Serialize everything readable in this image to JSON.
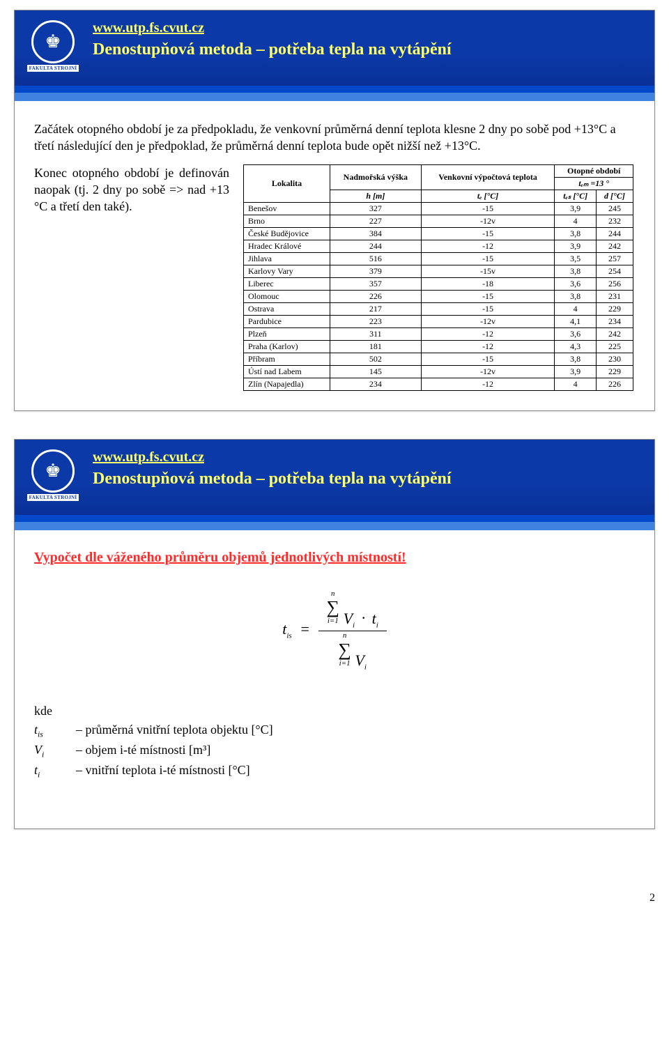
{
  "page_number": "2",
  "header": {
    "url": "www.utp.fs.cvut.cz",
    "title": "Denostupňová metoda – potřeba tepla na vytápění",
    "logo_label": "FAKULTA STROJNÍ",
    "colors": {
      "header_bg": "#0b3aa8",
      "accent_bar": "#3f82e0",
      "link_color": "#ffff66",
      "title_color": "#ffff66"
    }
  },
  "slide1": {
    "para1": "Začátek otopného období je za předpokladu, že venkovní průměrná denní teplota klesne 2 dny po sobě pod +13°C a třetí následující den je předpoklad, že průměrná denní teplota bude opět nižší než  +13°C.",
    "para2": "Konec otopného období je definován naopak (tj. 2 dny po sobě => nad +13 °C a třetí den také).",
    "table": {
      "head_lokalita": "Lokalita",
      "head_nadm": "Nadmořská výška",
      "head_venk": "Venkovní výpočtová teplota",
      "head_otop": "Otopné období",
      "head_tem13": "tₑₘ =13 °",
      "sub_h": "h  [m]",
      "sub_te": "tₑ  [°C]",
      "sub_tes": "tₑₛ  [°C]",
      "sub_d": "d  [°C]",
      "rows": [
        [
          "Benešov",
          "327",
          "-15",
          "3,9",
          "245"
        ],
        [
          "Brno",
          "227",
          "-12v",
          "4",
          "232"
        ],
        [
          "České Budějovice",
          "384",
          "-15",
          "3,8",
          "244"
        ],
        [
          "Hradec Králové",
          "244",
          "-12",
          "3,9",
          "242"
        ],
        [
          "Jihlava",
          "516",
          "-15",
          "3,5",
          "257"
        ],
        [
          "Karlovy Vary",
          "379",
          "-15v",
          "3,8",
          "254"
        ],
        [
          "Liberec",
          "357",
          "-18",
          "3,6",
          "256"
        ],
        [
          "Olomouc",
          "226",
          "-15",
          "3,8",
          "231"
        ],
        [
          "Ostrava",
          "217",
          "-15",
          "4",
          "229"
        ],
        [
          "Pardubice",
          "223",
          "-12v",
          "4,1",
          "234"
        ],
        [
          "Plzeň",
          "311",
          "-12",
          "3,6",
          "242"
        ],
        [
          "Praha (Karlov)",
          "181",
          "-12",
          "4,3",
          "225"
        ],
        [
          "Příbram",
          "502",
          "-15",
          "3,8",
          "230"
        ],
        [
          "Ústí nad Labem",
          "145",
          "-12v",
          "3,9",
          "229"
        ],
        [
          "Zlín (Napajedla)",
          "234",
          "-12",
          "4",
          "226"
        ]
      ]
    }
  },
  "slide2": {
    "red_line": "Vypočet dle váženého průměru objemů jednotlivých místností!",
    "formula": {
      "lhs": "t",
      "lhs_sub": "is",
      "eq": "=",
      "sum_top_limit": "n",
      "sum_bottom_limit": "i=1",
      "num_expr_v": "V",
      "num_expr_vsub": "i",
      "num_expr_dot": "·",
      "num_expr_t": "t",
      "num_expr_tsub": "i",
      "den_expr_v": "V",
      "den_expr_vsub": "i"
    },
    "legend": {
      "kde": "kde",
      "r1_sym_base": "t",
      "r1_sym_sub": "is",
      "r1_desc": "– průměrná vnitřní teplota objektu [°C]",
      "r2_sym_base": "V",
      "r2_sym_sub": "i",
      "r2_desc": "– objem i-té místnosti [m³]",
      "r3_sym_base": "t",
      "r3_sym_sub": "i",
      "r3_desc": "– vnitřní teplota i-té místnosti [°C]"
    }
  }
}
